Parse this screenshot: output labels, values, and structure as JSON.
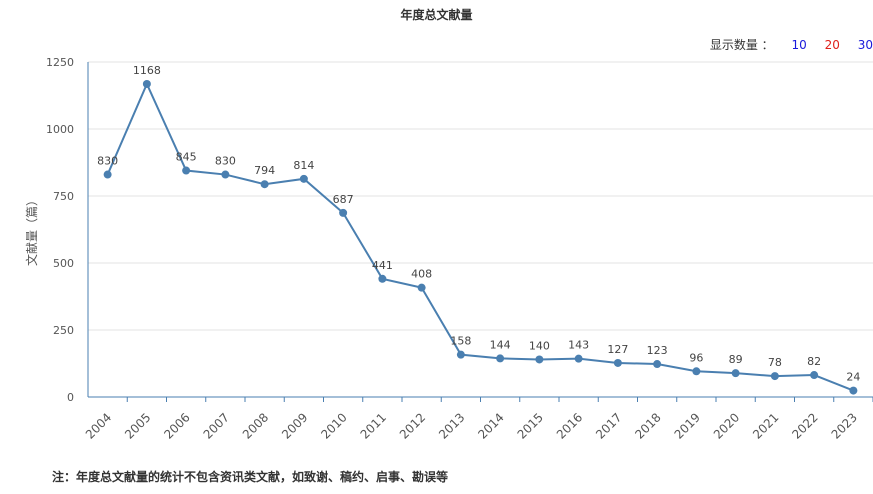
{
  "title": "年度总文献量",
  "selector": {
    "label": "显示数量 ：",
    "options": [
      "10",
      "20",
      "30"
    ]
  },
  "footnote": "注：年度总文献量的统计不包含资讯类文献，如致谢、稿约、启事、勘误等",
  "colors": {
    "line": "#4a7fb0",
    "axis": "#4a7fb0",
    "grid": "#e3e3e3",
    "text": "#555555"
  },
  "chart_data": {
    "type": "line",
    "x": [
      "2004",
      "2005",
      "2006",
      "2007",
      "2008",
      "2009",
      "2010",
      "2011",
      "2012",
      "2013",
      "2014",
      "2015",
      "2016",
      "2017",
      "2018",
      "2019",
      "2020",
      "2021",
      "2022",
      "2023"
    ],
    "series": [
      {
        "values": [
          830,
          1168,
          845,
          830,
          794,
          814,
          687,
          441,
          408,
          158,
          144,
          140,
          143,
          127,
          123,
          96,
          89,
          78,
          82,
          24
        ]
      }
    ],
    "ylabel": "文献量（篇）",
    "ylim": [
      0,
      1250
    ],
    "yticks": [
      "0",
      "250",
      "500",
      "750",
      "1000",
      "1250"
    ],
    "grid": true,
    "data_labels": true
  }
}
